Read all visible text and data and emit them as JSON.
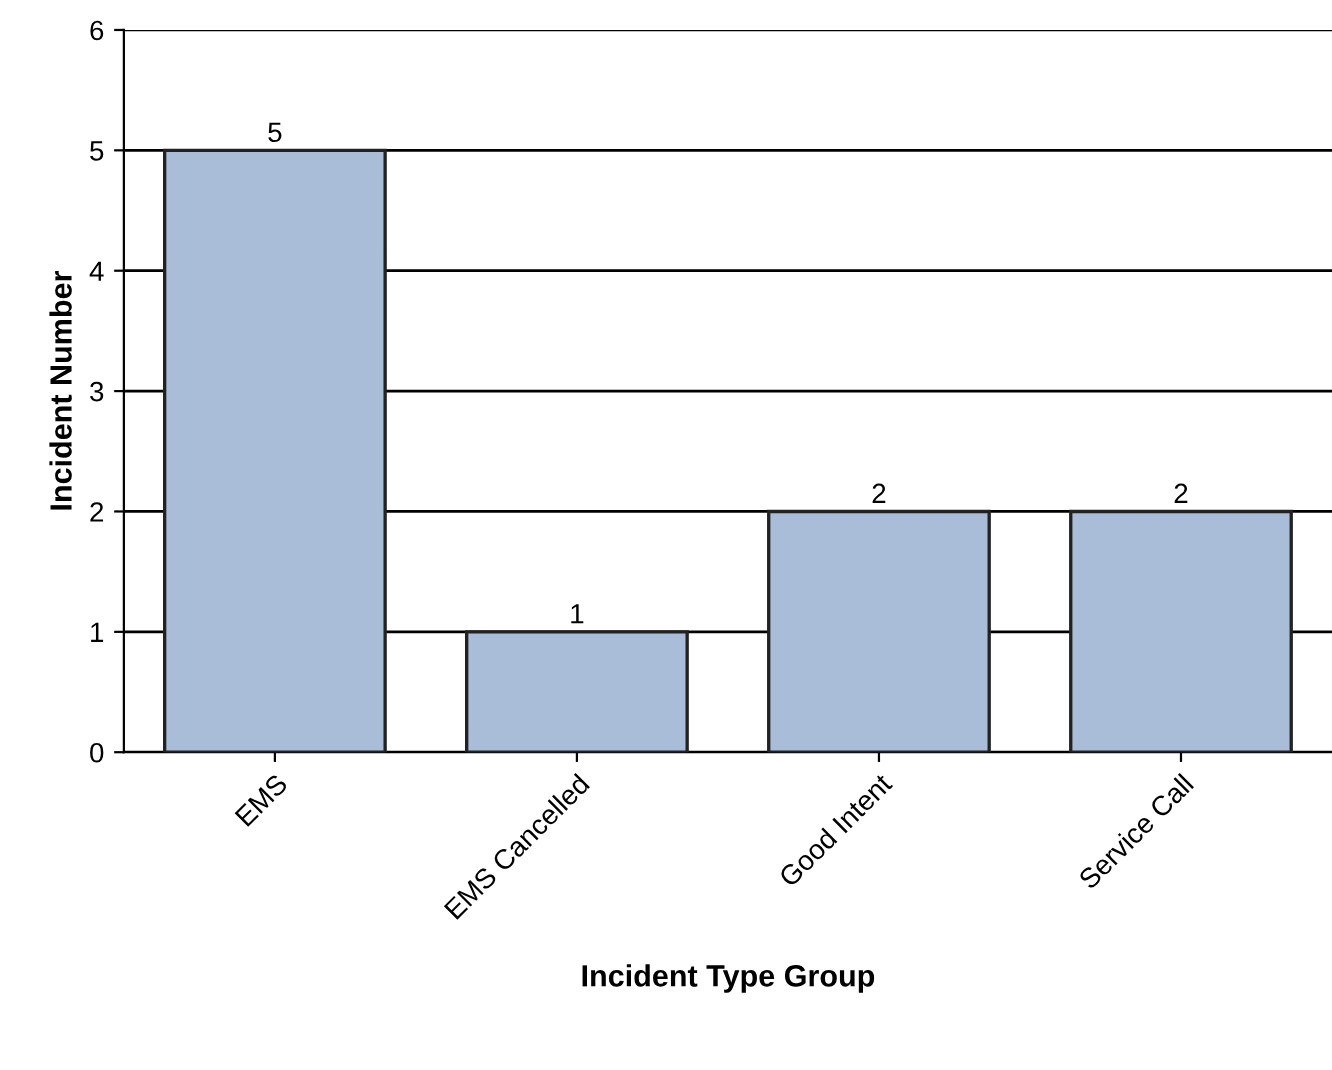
{
  "chart_data": {
    "type": "bar",
    "xlabel": "Incident Type Group",
    "ylabel": "Incident Number",
    "categories": [
      "EMS",
      "EMS Cancelled",
      "Good Intent",
      "Service Call"
    ],
    "values": [
      5,
      1,
      2,
      2
    ],
    "color": "#a9bcd8",
    "ylim": [
      0,
      6
    ],
    "yticks": [
      0,
      1,
      2,
      3,
      4,
      5,
      6
    ],
    "grid": "y",
    "data_labels": true,
    "legend": false
  }
}
